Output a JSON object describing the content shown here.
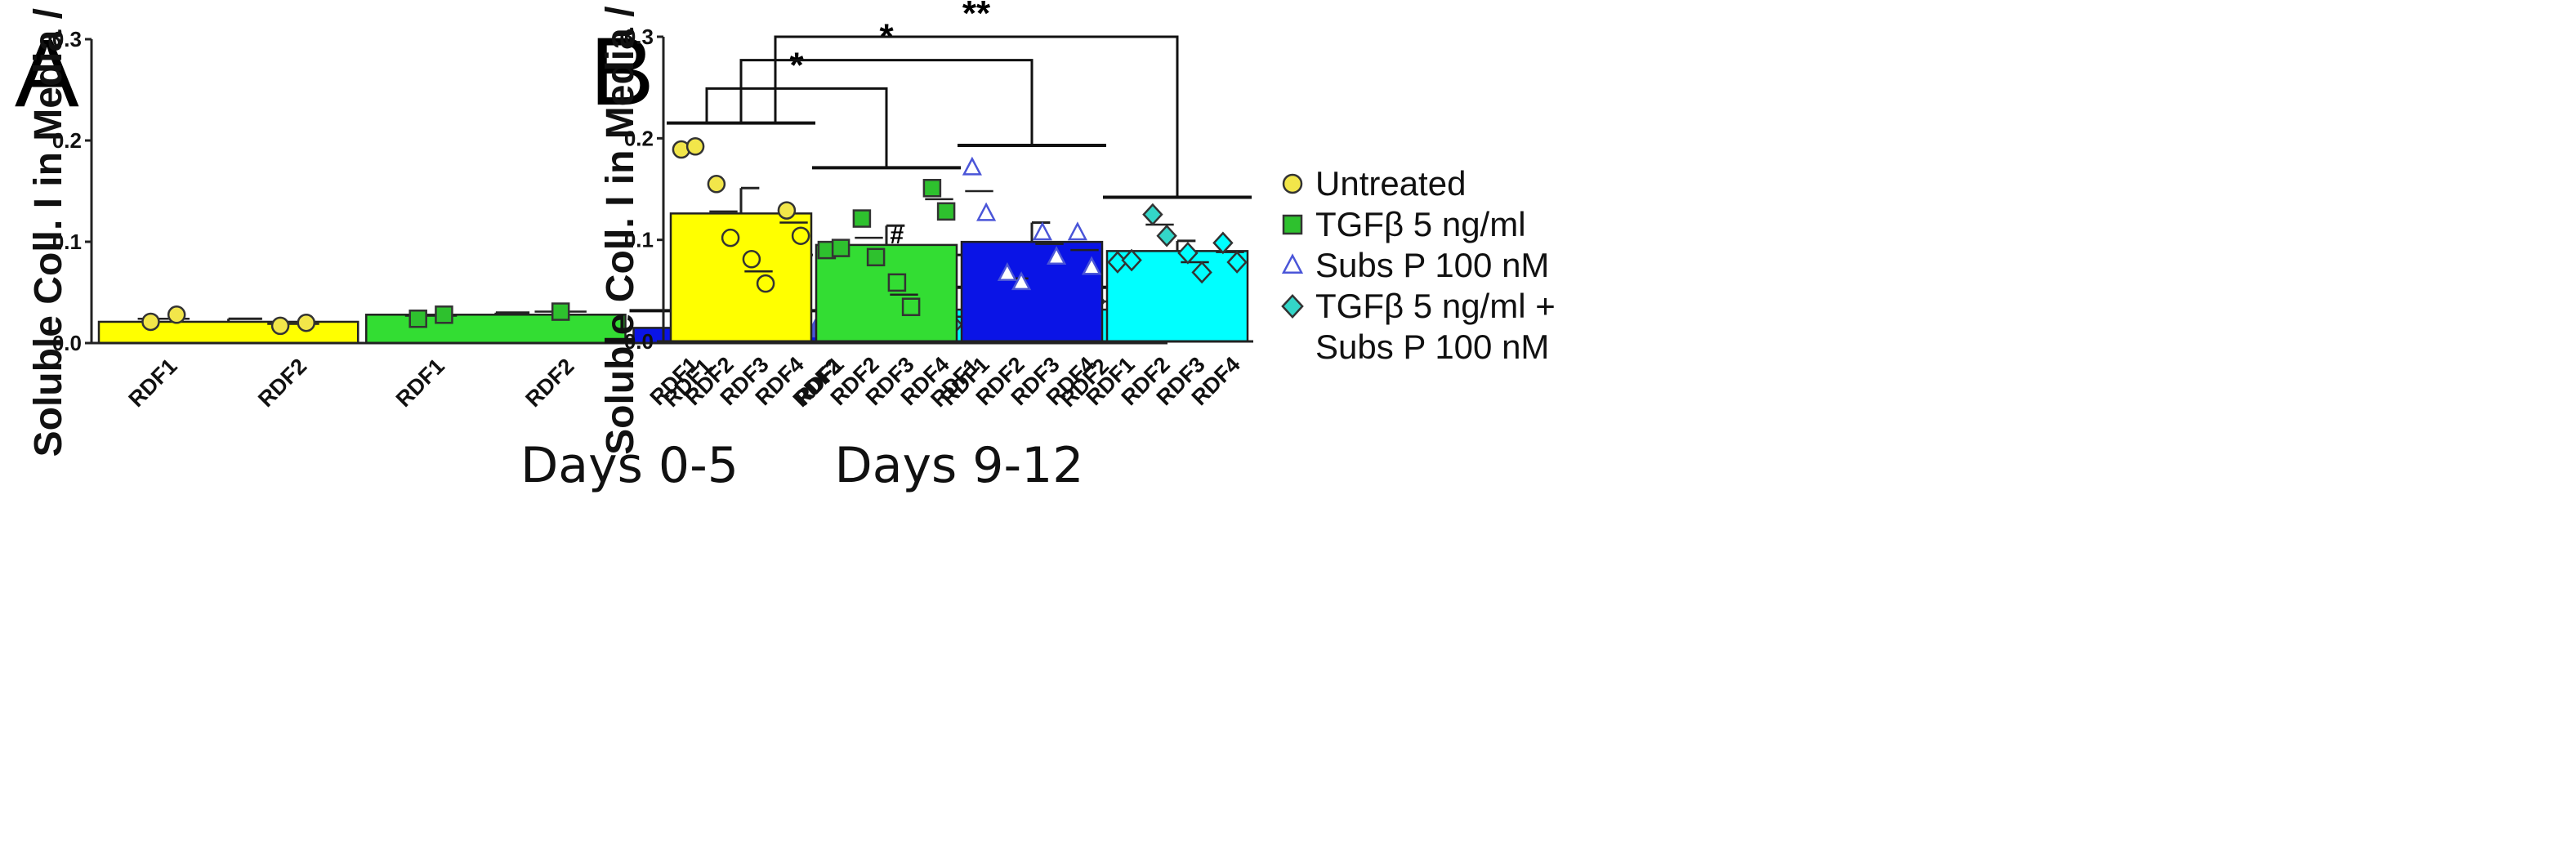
{
  "figure": {
    "panels": [
      "A",
      "B"
    ],
    "y_axis_label": "Soluble Coll. I in Media / Cell"
  },
  "colors": {
    "Untreated": "#ffff00",
    "TGF": "#33dd33",
    "SubsP": "#0a14e6",
    "TGFSubsP": "#00ffff",
    "marker_untreated": "#f2e64a",
    "marker_tgf": "#2ec12e",
    "marker_subsp": "#4a55d8",
    "marker_tgfsubsp": "#33d6c8"
  },
  "legend": [
    {
      "label": "Untreated",
      "marker": "circle",
      "color": "#f2e64a"
    },
    {
      "label": "TGFβ 5 ng/ml",
      "marker": "square",
      "color": "#2ec12e"
    },
    {
      "label": "Subs P 100 nM",
      "marker": "triangle-open",
      "color": "#4a55d8"
    },
    {
      "label": "TGFβ 5 ng/ml +",
      "marker": "diamond",
      "color": "#33d6c8"
    },
    {
      "label": "Subs P 100 nM",
      "marker": "none",
      "color": ""
    }
  ],
  "chart_data": [
    {
      "panel": "A",
      "type": "bar",
      "xlabel": "Days 0-5",
      "ylabel": "Soluble Coll. I in Media / Cell",
      "ylim": [
        0,
        0.3
      ],
      "yticks": [
        "0.0",
        "0.1",
        "0.2",
        "0.3"
      ],
      "categories": [
        "Untreated",
        "TGFβ 5 ng/ml",
        "Subs P 100 nM",
        "TGFβ 5 ng/ml + Subs P 100 nM"
      ],
      "donors": [
        "RDF1",
        "RDF2"
      ],
      "bars": [
        {
          "group": "Untreated",
          "mean": 0.021,
          "sem": 0.003,
          "color_key": "Untreated",
          "marker_key": "marker_untreated",
          "marker": "circle",
          "points": [
            {
              "donor": "RDF1",
              "values": [
                0.021,
                0.028
              ]
            },
            {
              "donor": "RDF2",
              "values": [
                0.017,
                0.02
              ]
            }
          ],
          "donor_means": [
            0.024,
            0.019
          ]
        },
        {
          "group": "TGFβ 5 ng/ml",
          "mean": 0.028,
          "sem": 0.002,
          "color_key": "TGF",
          "marker_key": "marker_tgf",
          "marker": "square",
          "points": [
            {
              "donor": "RDF1",
              "values": [
                0.024,
                0.028
              ]
            },
            {
              "donor": "RDF2",
              "values": [
                0.031
              ]
            }
          ],
          "donor_means": [
            0.027,
            0.031
          ]
        },
        {
          "group": "Subs P 100 nM",
          "mean": 0.015,
          "sem": 0.002,
          "color_key": "SubsP",
          "marker_key": "marker_subsp",
          "marker": "triangle",
          "points": [
            {
              "donor": "RDF1",
              "values": [
                0.014,
                0.018
              ]
            },
            {
              "donor": "RDF2",
              "values": [
                0.013,
                0.016
              ]
            }
          ],
          "donor_means": [
            0.016,
            0.014
          ]
        },
        {
          "group": "TGFβ 5 ng/ml + Subs P 100 nM",
          "mean": 0.033,
          "sem": 0.008,
          "color_key": "TGFSubsP",
          "marker_key": "marker_tgfsubsp",
          "marker": "diamond",
          "points": [
            {
              "donor": "RDF1",
              "values": [
                0.018,
                0.031
              ]
            },
            {
              "donor": "RDF2",
              "values": [
                0.041
              ]
            }
          ],
          "donor_means": [
            0.026,
            0.041
          ]
        }
      ],
      "group_lines": [
        {
          "group_index": 2,
          "y": 0.032
        },
        {
          "group_index": 3,
          "y": 0.055
        }
      ],
      "significance": [
        {
          "label": "#",
          "from_group": 2,
          "to_group": 3,
          "dashed": true,
          "y": 0.087
        }
      ]
    },
    {
      "panel": "B",
      "type": "bar",
      "xlabel": "Days 9-12",
      "ylabel": "Soluble Coll. I in Media / Cell",
      "ylim": [
        0,
        0.3
      ],
      "yticks": [
        "0.0",
        "0.1",
        "0.2",
        "0.3"
      ],
      "categories": [
        "Untreated",
        "TGFβ 5 ng/ml",
        "Subs P 100 nM",
        "TGFβ 5 ng/ml + Subs P 100 nM"
      ],
      "donors": [
        "RDF1",
        "RDF2",
        "RDF3",
        "RDF4"
      ],
      "bars": [
        {
          "group": "Untreated",
          "mean": 0.126,
          "sem": 0.025,
          "color_key": "Untreated",
          "marker_key": "marker_untreated",
          "marker": "circle",
          "points": [
            {
              "donor": "RDF1",
              "values": [
                0.189,
                0.192
              ]
            },
            {
              "donor": "RDF2",
              "values": [
                0.155,
                0.102
              ]
            },
            {
              "donor": "RDF3",
              "values": [
                0.081,
                0.057
              ]
            },
            {
              "donor": "RDF4",
              "values": [
                0.129,
                0.104
              ]
            }
          ],
          "donor_means": [
            0.19,
            0.128,
            0.069,
            0.117
          ]
        },
        {
          "group": "TGFβ 5 ng/ml",
          "mean": 0.095,
          "sem": 0.019,
          "color_key": "TGF",
          "marker_key": "marker_tgf",
          "marker": "square",
          "points": [
            {
              "donor": "RDF1",
              "values": [
                0.09,
                0.092
              ]
            },
            {
              "donor": "RDF2",
              "values": [
                0.121,
                0.083
              ]
            },
            {
              "donor": "RDF3",
              "values": [
                0.058,
                0.034
              ]
            },
            {
              "donor": "RDF4",
              "values": [
                0.151,
                0.128
              ]
            }
          ],
          "donor_means": [
            0.091,
            0.102,
            0.046,
            0.14
          ]
        },
        {
          "group": "Subs P 100 nM",
          "mean": 0.098,
          "sem": 0.019,
          "color_key": "SubsP",
          "marker_key": "marker_subsp",
          "marker": "triangle",
          "points": [
            {
              "donor": "RDF1",
              "values": [
                0.171,
                0.126
              ]
            },
            {
              "donor": "RDF2",
              "values": [
                0.067,
                0.058
              ]
            },
            {
              "donor": "RDF3",
              "values": [
                0.107,
                0.083
              ]
            },
            {
              "donor": "RDF4",
              "values": [
                0.107,
                0.073
              ]
            }
          ],
          "donor_means": [
            0.148,
            0.062,
            0.096,
            0.09
          ]
        },
        {
          "group": "TGFβ 5 ng/ml + Subs P 100 nM",
          "mean": 0.089,
          "sem": 0.01,
          "color_key": "TGFSubsP",
          "marker_key": "marker_tgfsubsp",
          "marker": "diamond",
          "points": [
            {
              "donor": "RDF1",
              "values": [
                0.078,
                0.08
              ]
            },
            {
              "donor": "RDF2",
              "values": [
                0.125,
                0.104
              ]
            },
            {
              "donor": "RDF3",
              "values": [
                0.087,
                0.068
              ]
            },
            {
              "donor": "RDF4",
              "values": [
                0.097,
                0.078
              ]
            }
          ],
          "donor_means": [
            0.079,
            0.115,
            0.078,
            0.088
          ]
        }
      ],
      "group_lines": [
        {
          "group_index": 0,
          "y": 0.215
        },
        {
          "group_index": 1,
          "y": 0.171
        },
        {
          "group_index": 2,
          "y": 0.193
        },
        {
          "group_index": 3,
          "y": 0.142
        }
      ],
      "significance": [
        {
          "label": "*",
          "from_group": 0,
          "to_group": 1,
          "dashed": false,
          "y": 0.249
        },
        {
          "label": "*",
          "from_group": 0,
          "to_group": 2,
          "dashed": false,
          "y": 0.277
        },
        {
          "label": "**",
          "from_group": 0,
          "to_group": 3,
          "dashed": false,
          "y": 0.3
        }
      ]
    }
  ]
}
